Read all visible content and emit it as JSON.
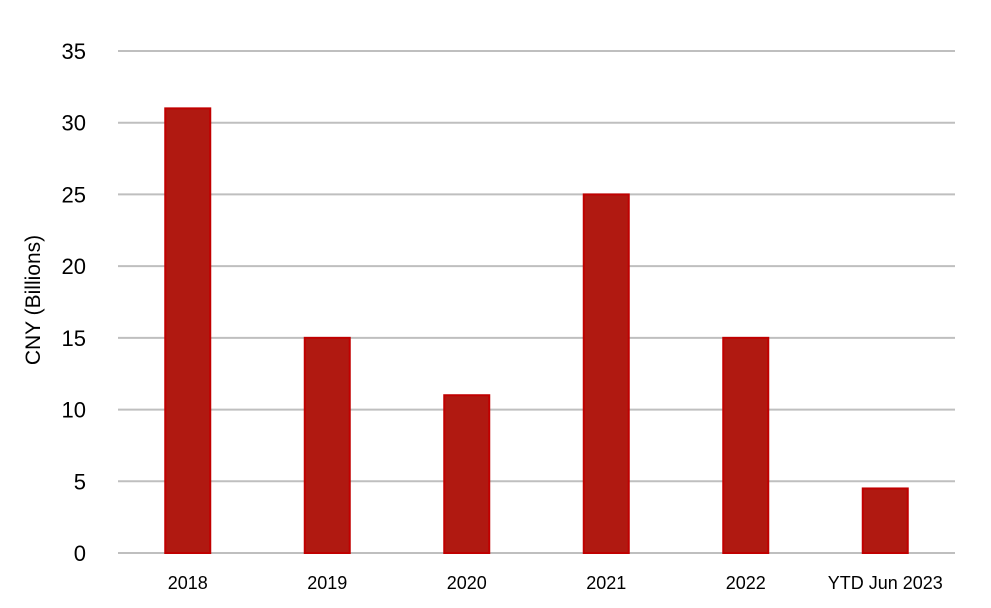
{
  "chart_data": {
    "type": "bar",
    "categories": [
      "2018",
      "2019",
      "2020",
      "2021",
      "2022",
      "YTD Jun 2023"
    ],
    "values": [
      31,
      15,
      11,
      25,
      15,
      4.5
    ],
    "title": "",
    "xlabel": "",
    "ylabel": "CNY (Billions)",
    "ylim": [
      0,
      35
    ],
    "yticks": [
      0,
      5,
      10,
      15,
      20,
      25,
      30,
      35
    ],
    "grid": true,
    "legend": "none",
    "colors": {
      "bar_fill": "#B01911",
      "bar_edge": "#C00000",
      "grid": "#BFBFBF"
    }
  }
}
